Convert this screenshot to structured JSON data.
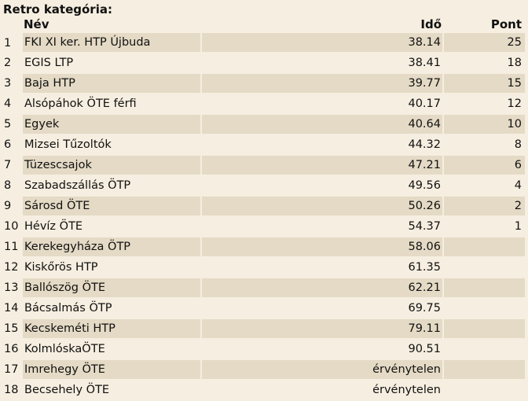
{
  "title": "Retro kategória:",
  "headers": {
    "rank": "",
    "name": "Név",
    "time": "Idő",
    "points": "Pont"
  },
  "rows": [
    {
      "rank": "1",
      "name": "FKI XI ker. HTP Újbuda",
      "time": "38.14",
      "points": "25"
    },
    {
      "rank": "2",
      "name": "EGIS LTP",
      "time": "38.41",
      "points": "18"
    },
    {
      "rank": "3",
      "name": "Baja HTP",
      "time": "39.77",
      "points": "15"
    },
    {
      "rank": "4",
      "name": "Alsópáhok ÖTE férfi",
      "time": "40.17",
      "points": "12"
    },
    {
      "rank": "5",
      "name": "Egyek",
      "time": "40.64",
      "points": "10"
    },
    {
      "rank": "6",
      "name": "Mizsei Tűzoltók",
      "time": "44.32",
      "points": "8"
    },
    {
      "rank": "7",
      "name": "Tüzescsajok",
      "time": "47.21",
      "points": "6"
    },
    {
      "rank": "8",
      "name": "Szabadszállás ÖTP",
      "time": "49.56",
      "points": "4"
    },
    {
      "rank": "9",
      "name": "Sárosd ÖTE",
      "time": "50.26",
      "points": "2"
    },
    {
      "rank": "10",
      "name": "Hévíz ÖTE",
      "time": "54.37",
      "points": "1"
    },
    {
      "rank": "11",
      "name": "Kerekegyháza ÖTP",
      "time": "58.06",
      "points": ""
    },
    {
      "rank": "12",
      "name": "Kiskőrös HTP",
      "time": "61.35",
      "points": ""
    },
    {
      "rank": "13",
      "name": "Ballószög ÖTE",
      "time": "62.21",
      "points": ""
    },
    {
      "rank": "14",
      "name": "Bácsalmás ÖTP",
      "time": "69.75",
      "points": ""
    },
    {
      "rank": "15",
      "name": "Kecskeméti HTP",
      "time": "79.11",
      "points": ""
    },
    {
      "rank": "16",
      "name": "KolmlóskaÖTE",
      "time": "90.51",
      "points": ""
    },
    {
      "rank": "17",
      "name": "Imrehegy ÖTE",
      "time": "érvénytelen",
      "points": ""
    },
    {
      "rank": "18",
      "name": "Becsehely ÖTE",
      "time": "érvénytelen",
      "points": ""
    }
  ]
}
